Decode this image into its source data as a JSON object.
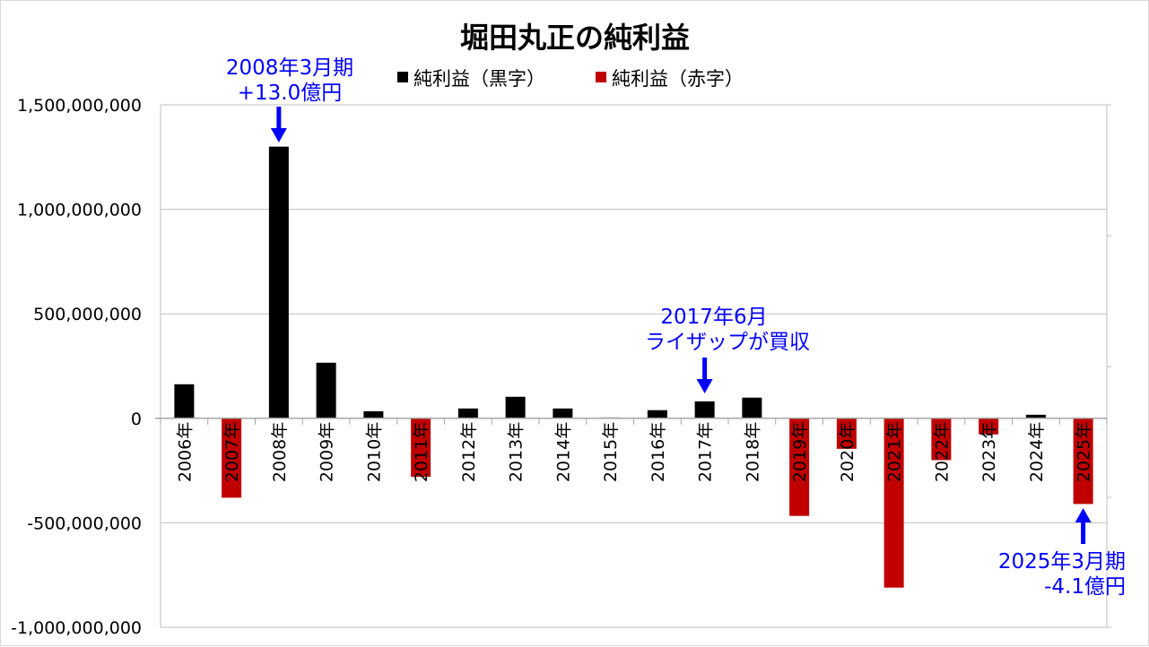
{
  "chart_data": {
    "type": "bar",
    "title": "堀田丸正の純利益",
    "categories": [
      "2006年",
      "2007年",
      "2008年",
      "2009年",
      "2010年",
      "2011年",
      "2012年",
      "2013年",
      "2014年",
      "2015年",
      "2016年",
      "2017年",
      "2018年",
      "2019年",
      "2020年",
      "2021年",
      "2022年",
      "2023年",
      "2024年",
      "2025年"
    ],
    "values": [
      163000000,
      -380000000,
      1300000000,
      266000000,
      34000000,
      -280000000,
      47000000,
      103000000,
      47000000,
      4000000,
      39000000,
      81000000,
      99000000,
      -467000000,
      -146000000,
      -810000000,
      -200000000,
      -77000000,
      17000000,
      -410000000
    ],
    "series": [
      {
        "name": "純利益（黒字）",
        "color": "#000000"
      },
      {
        "name": "純利益（赤字）",
        "color": "#c00000"
      }
    ],
    "ylim": [
      -1000000000,
      1500000000
    ],
    "yticks": [
      "-1,000,000,000",
      "-500,000,000",
      "0",
      "500,000,000",
      "1,000,000,000",
      "1,500,000,000"
    ],
    "grid": true,
    "legend": "top",
    "annotations": [
      {
        "lines": [
          "2008年3月期",
          "+13.0億円"
        ],
        "category": "2008年"
      },
      {
        "lines": [
          "2017年6月",
          "ライザップが買収"
        ],
        "category": "2017年"
      },
      {
        "lines": [
          "2025年3月期",
          "-4.1億円"
        ],
        "category": "2025年"
      }
    ],
    "annotation_color": "#0000ff"
  }
}
